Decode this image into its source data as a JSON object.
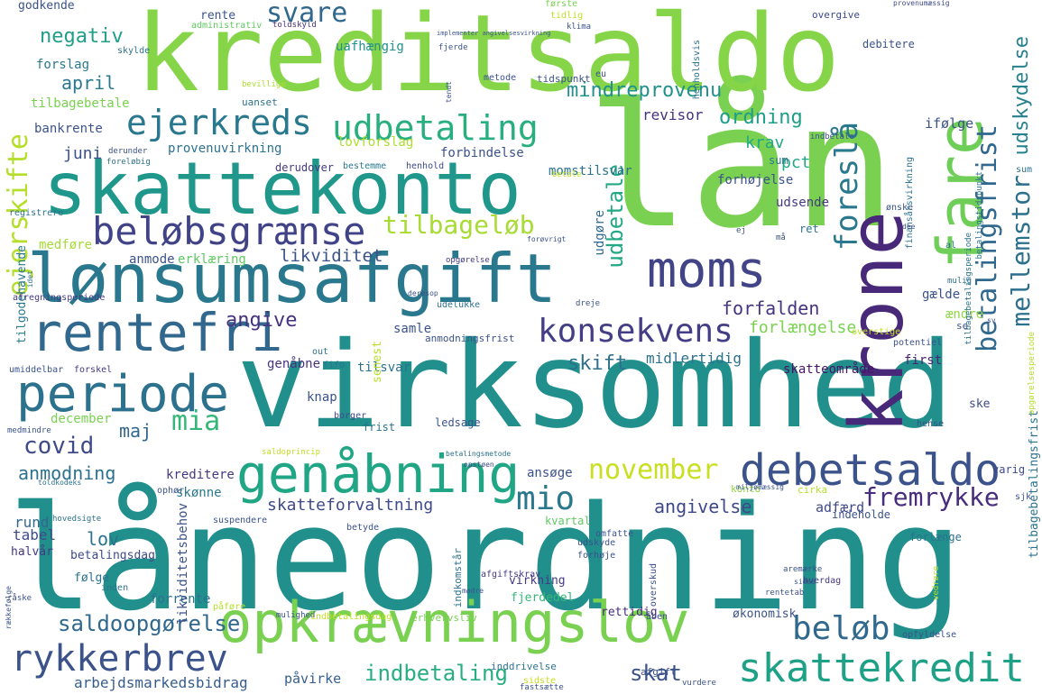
{
  "words": [
    {
      "text": "låneordning",
      "color": "#21908d"
    },
    {
      "text": "virksomhed",
      "color": "#21908d"
    },
    {
      "text": "lån",
      "color": "#7ad151"
    },
    {
      "text": "kreditsaldo",
      "color": "#86d549"
    },
    {
      "text": "skattekonto",
      "color": "#1f978b"
    },
    {
      "text": "lønsumsafgift",
      "color": "#2a788e"
    },
    {
      "text": "opkrævningslov",
      "color": "#7ad151"
    },
    {
      "text": "moms",
      "color": "#414487"
    },
    {
      "text": "krone",
      "color": "#482878"
    },
    {
      "text": "fare",
      "color": "#6ece58"
    },
    {
      "text": "rentefri",
      "color": "#31688e"
    },
    {
      "text": "periode",
      "color": "#2c728e"
    },
    {
      "text": "genåbning",
      "color": "#21a685"
    },
    {
      "text": "debetsaldo",
      "color": "#3b528b"
    },
    {
      "text": "skattekredit",
      "color": "#1fa187"
    },
    {
      "text": "beløbsgrænse",
      "color": "#404387"
    },
    {
      "text": "udbetaling",
      "color": "#29af7f"
    },
    {
      "text": "ejerkreds",
      "color": "#2a788e"
    },
    {
      "text": "konsekvens",
      "color": "#433e85"
    },
    {
      "text": "rykkerbrev",
      "color": "#3b528b"
    },
    {
      "text": "foreslå",
      "color": "#2a788e"
    },
    {
      "text": "betalingsfrist",
      "color": "#31688e"
    },
    {
      "text": "mellemstor",
      "color": "#2d708e"
    },
    {
      "text": "ejerskifte",
      "color": "#b5de2b"
    },
    {
      "text": "mio",
      "color": "#2a788e"
    },
    {
      "text": "november",
      "color": "#c8e020"
    },
    {
      "text": "fremrykke",
      "color": "#472d7b"
    },
    {
      "text": "beløb",
      "color": "#31688e"
    },
    {
      "text": "tilbageløb",
      "color": "#a8db34"
    },
    {
      "text": "svare",
      "color": "#31688e"
    },
    {
      "text": "mia",
      "color": "#35b779"
    },
    {
      "text": "covid",
      "color": "#3e4a89"
    },
    {
      "text": "udbetale",
      "color": "#22a884"
    },
    {
      "text": "udskydelse",
      "color": "#26828e"
    },
    {
      "text": "negativ",
      "color": "#1f9e89"
    },
    {
      "text": "likviditet",
      "color": "#3b528b"
    },
    {
      "text": "angive",
      "color": "#46327e"
    },
    {
      "text": "saldoopgørelse",
      "color": "#31688e"
    },
    {
      "text": "indbetaling",
      "color": "#28ae80"
    },
    {
      "text": "skat",
      "color": "#3b528b"
    },
    {
      "text": "ordning",
      "color": "#1f9e89"
    },
    {
      "text": "mindreprovenu",
      "color": "#21918c"
    },
    {
      "text": "anmodning",
      "color": "#2c728e"
    },
    {
      "text": "skift",
      "color": "#2d708e"
    },
    {
      "text": "forlængelse",
      "color": "#7ad151"
    },
    {
      "text": "forfalden",
      "color": "#46337e"
    },
    {
      "text": "angivelse",
      "color": "#3e4989"
    },
    {
      "text": "skatteforvaltning",
      "color": "#3e4a89"
    },
    {
      "text": "maj",
      "color": "#31688e"
    },
    {
      "text": "lov",
      "color": "#2c728e"
    },
    {
      "text": "april",
      "color": "#2a788e"
    },
    {
      "text": "krav",
      "color": "#22a884"
    },
    {
      "text": "pct",
      "color": "#22a884"
    },
    {
      "text": "juni",
      "color": "#3b528b"
    },
    {
      "text": "revisor",
      "color": "#46337e"
    },
    {
      "text": "ifølge",
      "color": "#3b528b"
    },
    {
      "text": "midlertidig",
      "color": "#2c728e"
    },
    {
      "text": "skatteområde",
      "color": "#471365"
    },
    {
      "text": "arbejdsmarkedsbidrag",
      "color": "#365c8d"
    },
    {
      "text": "påvirke",
      "color": "#355f8d"
    },
    {
      "text": "adfærd",
      "color": "#3e4a89"
    },
    {
      "text": "uafhængig",
      "color": "#21918c"
    },
    {
      "text": "forslag",
      "color": "#2a788e"
    },
    {
      "text": "tilbagebetale",
      "color": "#7ad151"
    },
    {
      "text": "bankrente",
      "color": "#3b528b"
    },
    {
      "text": "provenuvirkning",
      "color": "#2c728e"
    },
    {
      "text": "lovforslag",
      "color": "#addc30"
    },
    {
      "text": "forbindelse",
      "color": "#3b528b"
    },
    {
      "text": "momstilsvar",
      "color": "#2c728e"
    },
    {
      "text": "forhøjelse",
      "color": "#3b528b"
    },
    {
      "text": "udsende",
      "color": "#443983"
    },
    {
      "text": "udgøre",
      "color": "#31688e"
    },
    {
      "text": "anmode",
      "color": "#3b528b"
    },
    {
      "text": "erklæring",
      "color": "#5ec962"
    },
    {
      "text": "medføre",
      "color": "#a5db36"
    },
    {
      "text": "tilgodehavende",
      "color": "#2a788e"
    },
    {
      "text": "december",
      "color": "#7ad151"
    },
    {
      "text": "kreditere",
      "color": "#443983"
    },
    {
      "text": "skønne",
      "color": "#2a788e"
    },
    {
      "text": "ansøge",
      "color": "#3b528b"
    },
    {
      "text": "genåbne",
      "color": "#46337e"
    },
    {
      "text": "tilsvar",
      "color": "#2c728e"
    },
    {
      "text": "knap",
      "color": "#3b528b"
    },
    {
      "text": "first",
      "color": "#482475"
    },
    {
      "text": "samle",
      "color": "#3b528b"
    },
    {
      "text": "senest",
      "color": "#b8de29"
    },
    {
      "text": "sum",
      "color": "#2a788e"
    },
    {
      "text": "gælde",
      "color": "#3b528b"
    },
    {
      "text": "ændre",
      "color": "#8fd744"
    },
    {
      "text": "rund",
      "color": "#31688e"
    },
    {
      "text": "tabel",
      "color": "#3e4a89"
    },
    {
      "text": "halvår",
      "color": "#443983"
    },
    {
      "text": "følge",
      "color": "#2c728e"
    },
    {
      "text": "forrente",
      "color": "#2c728e"
    },
    {
      "text": "likviditetsbehov",
      "color": "#3b528b"
    },
    {
      "text": "betalingsdag",
      "color": "#3e4a89"
    },
    {
      "text": "virkning",
      "color": "#443983"
    },
    {
      "text": "fjerdedel",
      "color": "#35b779"
    },
    {
      "text": "rettidig",
      "color": "#472d7b"
    },
    {
      "text": "økonomisk",
      "color": "#3b528b"
    },
    {
      "text": "kvartal",
      "color": "#5ec962"
    },
    {
      "text": "konto",
      "color": "#8fd744"
    },
    {
      "text": "cirka",
      "color": "#b5de2b"
    },
    {
      "text": "indeholde",
      "color": "#3b528b"
    },
    {
      "text": "forlænge",
      "color": "#2c728e"
    },
    {
      "text": "sjk",
      "color": "#3b528b"
    },
    {
      "text": "ske",
      "color": "#3e4a89"
    },
    {
      "text": "varig",
      "color": "#3e4a89"
    },
    {
      "text": "godkende",
      "color": "#3b528b"
    },
    {
      "text": "rente",
      "color": "#3b528b"
    },
    {
      "text": "administrativ",
      "color": "#5ec962"
    },
    {
      "text": "toldskyld",
      "color": "#46337e"
    },
    {
      "text": "første",
      "color": "#7ad151"
    },
    {
      "text": "tidlig",
      "color": "#c2df23"
    },
    {
      "text": "klima",
      "color": "#3b528b"
    },
    {
      "text": "overgive",
      "color": "#3e4a89"
    },
    {
      "text": "debitere",
      "color": "#3b528b"
    },
    {
      "text": "fjerde",
      "color": "#3b528b"
    },
    {
      "text": "provenumæssig",
      "color": "#3e4a89"
    },
    {
      "text": "skylde",
      "color": "#2c728e"
    },
    {
      "text": "metode",
      "color": "#3b528b"
    },
    {
      "text": "tidspunkt",
      "color": "#3b528b"
    },
    {
      "text": "bevillige",
      "color": "#addc30"
    },
    {
      "text": "uanset",
      "color": "#2c728e"
    },
    {
      "text": "henholdsvis",
      "color": "#2c728e"
    },
    {
      "text": "indbetale",
      "color": "#3b528b"
    },
    {
      "text": "derunder",
      "color": "#3b528b"
    },
    {
      "text": "foreløbig",
      "color": "#2c728e"
    },
    {
      "text": "derudover",
      "color": "#443983"
    },
    {
      "text": "bestemme",
      "color": "#2a788e"
    },
    {
      "text": "henhold",
      "color": "#3e4a89"
    },
    {
      "text": "betale",
      "color": "#c2df23"
    },
    {
      "text": "registrere",
      "color": "#2c728e"
    },
    {
      "text": "opgørelse",
      "color": "#443983"
    },
    {
      "text": "idet",
      "color": "#2c728e"
    },
    {
      "text": "afregningsperiode",
      "color": "#443983"
    },
    {
      "text": "umiddelbar",
      "color": "#3b528b"
    },
    {
      "text": "medmindre",
      "color": "#3b528b"
    },
    {
      "text": "toldkodeks",
      "color": "#2c728e"
    },
    {
      "text": "hovedsigte",
      "color": "#2c728e"
    },
    {
      "text": "opstøen",
      "color": "#3e4a89"
    },
    {
      "text": "betalingsmetode",
      "color": "#2c728e"
    },
    {
      "text": "indkomstår",
      "color": "#2c728e"
    },
    {
      "text": "omfatte",
      "color": "#3b528b"
    },
    {
      "text": "udskyde",
      "color": "#3b528b"
    },
    {
      "text": "forhøje",
      "color": "#3b528b"
    },
    {
      "text": "afgiftskrav",
      "color": "#443983"
    },
    {
      "text": "overskud",
      "color": "#3b528b"
    },
    {
      "text": "hverdag",
      "color": "#443983"
    },
    {
      "text": "påføre",
      "color": "#b5de2b"
    },
    {
      "text": "mulighed",
      "color": "#3b528b"
    },
    {
      "text": "indbetalingsdag",
      "color": "#c2df23"
    },
    {
      "text": "erhvervsliv",
      "color": "#7ad151"
    },
    {
      "text": "åben",
      "color": "#3e4a89"
    },
    {
      "text": "sidste",
      "color": "#c8e020"
    },
    {
      "text": "inddrivelse",
      "color": "#2c728e"
    },
    {
      "text": "fastsætte",
      "color": "#3b528b"
    },
    {
      "text": "afgift",
      "color": "#3b528b"
    },
    {
      "text": "vurdere",
      "color": "#3b528b"
    },
    {
      "text": "opfyldelse",
      "color": "#3b528b"
    },
    {
      "text": "tilbagebetalingsfrist",
      "color": "#2c728e"
    },
    {
      "text": "vedrøre",
      "color": "#b5de2b"
    },
    {
      "text": "rentetab",
      "color": "#3b528b"
    },
    {
      "text": "anmodningsfrist",
      "color": "#3b528b"
    },
    {
      "text": "overstige",
      "color": "#c2df23"
    },
    {
      "text": "potentiel",
      "color": "#3b528b"
    },
    {
      "text": "opgørelsesperiode",
      "color": "#b5de2b"
    },
    {
      "text": "forskel",
      "color": "#443983"
    },
    {
      "text": "fifo",
      "color": "#2c728e"
    },
    {
      "text": "udelukke",
      "color": "#2c728e"
    },
    {
      "text": "dreje",
      "color": "#3b528b"
    },
    {
      "text": "ophør",
      "color": "#3b528b"
    },
    {
      "text": "suspendere",
      "color": "#3b528b"
    },
    {
      "text": "betyde",
      "color": "#3b528b"
    },
    {
      "text": "inden",
      "color": "#2c728e"
    },
    {
      "text": "ledsage",
      "color": "#3b528b"
    },
    {
      "text": "frist",
      "color": "#2c728e"
    },
    {
      "text": "borger",
      "color": "#3e4a89"
    },
    {
      "text": "hense",
      "color": "#3b528b"
    },
    {
      "text": "miljømæssig",
      "color": "#3b528b"
    },
    {
      "text": "ønske",
      "color": "#3b528b"
    },
    {
      "text": "finansårsvirkning",
      "color": "#2c728e"
    },
    {
      "text": "betalingstidspunkt",
      "color": "#2c728e"
    },
    {
      "text": "tilbagebetalingsperiode",
      "color": "#2c728e"
    },
    {
      "text": "implementer angivelsesvirkning",
      "color": "#3b528b"
    },
    {
      "text": "aremærke",
      "color": "#3b528b"
    },
    {
      "text": "sidee",
      "color": "#3b528b"
    },
    {
      "text": "ret",
      "color": "#2c728e"
    },
    {
      "text": "mulig",
      "color": "#2c728e"
    },
    {
      "text": "se",
      "color": "#3b528b"
    },
    {
      "text": "eu",
      "color": "#3b528b"
    },
    {
      "text": "rækkefølge",
      "color": "#3b528b"
    },
    {
      "text": "mødre",
      "color": "#3b528b"
    },
    {
      "text": "saldoprincip",
      "color": "#c2df23"
    },
    {
      "text": "out",
      "color": "#2c728e"
    },
    {
      "text": "råske",
      "color": "#3b528b"
    },
    {
      "text": "al",
      "color": "#2c728e"
    },
    {
      "text": "ej",
      "color": "#3b528b"
    },
    {
      "text": "sum",
      "color": "#2c728e"
    },
    {
      "text": "dee",
      "color": "#3b528b"
    },
    {
      "text": "sv",
      "color": "#3b528b"
    },
    {
      "text": "tendt",
      "color": "#3b528b"
    },
    {
      "text": "forøvrigt",
      "color": "#3b528b"
    },
    {
      "text": "deresop",
      "color": "#3b528b"
    },
    {
      "text": "må",
      "color": "#3b528b"
    }
  ]
}
